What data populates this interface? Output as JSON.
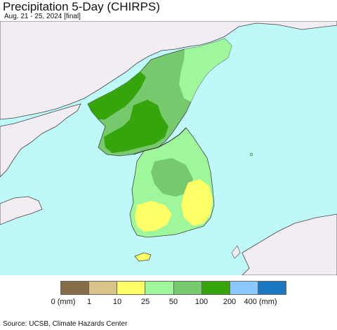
{
  "title": "Precipitation 5-Day (CHIRPS)",
  "subtitle": "Aug. 21 - 25, 2024 [final]",
  "source": "Source: UCSB, Climate Hazards Center",
  "colors": {
    "ocean": "#bff8f8",
    "land_nodata": "#f2edf2",
    "border": "#555555"
  },
  "legend": {
    "bins": [
      {
        "color": "#856d47"
      },
      {
        "color": "#d8c488"
      },
      {
        "color": "#ffff66"
      },
      {
        "color": "#9ef79a"
      },
      {
        "color": "#77c96e"
      },
      {
        "color": "#35a50b"
      },
      {
        "color": "#8ac8ff"
      },
      {
        "color": "#1c78c0"
      }
    ],
    "labels": [
      "0 (mm)",
      "1",
      "10",
      "25",
      "50",
      "100",
      "200",
      "400 (mm)"
    ]
  }
}
